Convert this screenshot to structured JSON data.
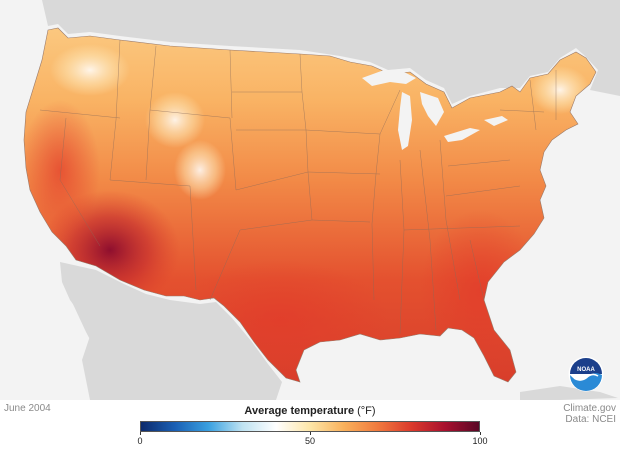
{
  "map": {
    "date": "June 2004",
    "legend": {
      "title": "Average temperature",
      "unit": "(°F)",
      "ticks": [
        {
          "label": "0",
          "value": 0
        },
        {
          "label": "50",
          "value": 50
        },
        {
          "label": "100",
          "value": 100
        }
      ],
      "min": 0,
      "max": 100,
      "colorscale": [
        "#0d2a6b",
        "#1a5fb4",
        "#3aa0e0",
        "#bfe3f2",
        "#ffffff",
        "#fde6a8",
        "#f9b15c",
        "#f07a3e",
        "#db3a2c",
        "#a8102e",
        "#5a0826"
      ]
    },
    "credit": {
      "line1": "Climate.gov",
      "line2": "Data: NCEI"
    },
    "logo_text": "NOAA",
    "colors": {
      "ocean": "#f3f3f3",
      "neighbor_land": "#d9d9d9",
      "lakes": "#f3f3f3",
      "state_borders": "#8a6a5a"
    }
  }
}
